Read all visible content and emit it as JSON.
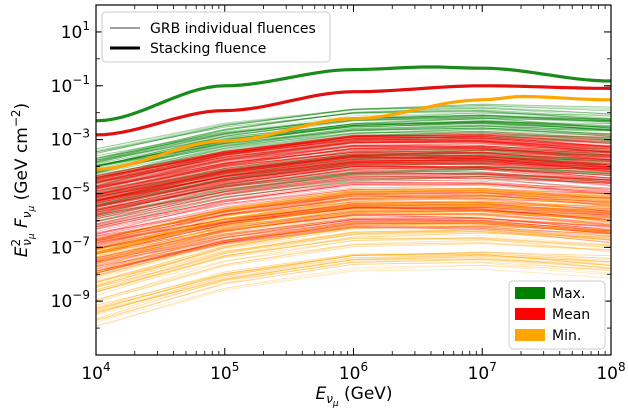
{
  "chart_data": {
    "type": "line",
    "xlabel": {
      "base": "E",
      "sub": "ν",
      "subsub": "μ",
      "unit": "(GeV)"
    },
    "ylabel": {
      "base": "E",
      "sup": "2",
      "sub": "ν",
      "subsub": "μ",
      "mid": "F",
      "unit_pre": "(GeV cm",
      "unit_sup": "−2",
      "unit_post": ")"
    },
    "x_scale": "log",
    "y_scale": "log",
    "xlim": [
      10000,
      100000000
    ],
    "ylim": [
      1e-11,
      100
    ],
    "x_ticks": [
      {
        "value": 10000,
        "base": "10",
        "exp": "4"
      },
      {
        "value": 100000,
        "base": "10",
        "exp": "5"
      },
      {
        "value": 1000000,
        "base": "10",
        "exp": "6"
      },
      {
        "value": 10000000,
        "base": "10",
        "exp": "7"
      },
      {
        "value": 100000000,
        "base": "10",
        "exp": "8"
      }
    ],
    "y_ticks": [
      {
        "value": 1e-09,
        "base": "10",
        "exp": "−9"
      },
      {
        "value": 1e-07,
        "base": "10",
        "exp": "−7"
      },
      {
        "value": 1e-05,
        "base": "10",
        "exp": "−5"
      },
      {
        "value": 0.001,
        "base": "10",
        "exp": "−3"
      },
      {
        "value": 0.1,
        "base": "10",
        "exp": "−1"
      },
      {
        "value": 10,
        "base": "10",
        "exp": "1"
      }
    ],
    "legend_lines": [
      {
        "label": "GRB individual fluences",
        "color": "#808080",
        "style": "thin"
      },
      {
        "label": "Stacking fluence",
        "color": "#000000",
        "style": "thick"
      }
    ],
    "legend_lines_position": "top-left",
    "legend_patches": [
      {
        "label": "Max.",
        "color": "#008000"
      },
      {
        "label": "Mean",
        "color": "#ff0000"
      },
      {
        "label": "Min.",
        "color": "#ffa500"
      }
    ],
    "legend_patches_position": "bottom-right",
    "stacking_series": [
      {
        "name": "Max.",
        "color": "#1a8a1a",
        "x": [
          10000,
          100000,
          1000000,
          4000000,
          10000000,
          100000000
        ],
        "y": [
          0.005,
          0.1,
          0.4,
          0.5,
          0.45,
          0.15
        ]
      },
      {
        "name": "Mean",
        "color": "#e01010",
        "x": [
          10000,
          100000,
          1000000,
          10000000,
          100000000
        ],
        "y": [
          0.0015,
          0.012,
          0.06,
          0.1,
          0.08
        ]
      },
      {
        "name": "Min.",
        "color": "#ffa500",
        "x": [
          10000,
          100000,
          1000000,
          10000000,
          20000000,
          100000000
        ],
        "y": [
          8e-05,
          0.0009,
          0.006,
          0.03,
          0.04,
          0.03
        ]
      }
    ],
    "individual_bands": [
      {
        "name": "Max.",
        "color": "#008000",
        "count": 110,
        "center": [
          4e-05,
          0.0004,
          0.0015,
          0.002,
          0.0012
        ],
        "low_spread_decades": 1.8,
        "high_spread_decades": 1.0
      },
      {
        "name": "Mean",
        "color": "#ff0000",
        "count": 220,
        "center": [
          2e-06,
          2e-05,
          8e-05,
          8e-05,
          4e-05
        ],
        "low_spread_decades": 2.2,
        "high_spread_decades": 1.3
      },
      {
        "name": "Min.",
        "color": "#ffa500",
        "count": 110,
        "center": [
          1e-08,
          2e-07,
          1e-06,
          1.2e-06,
          6e-07
        ],
        "low_spread_decades": 2.0,
        "high_spread_decades": 1.2
      }
    ]
  }
}
